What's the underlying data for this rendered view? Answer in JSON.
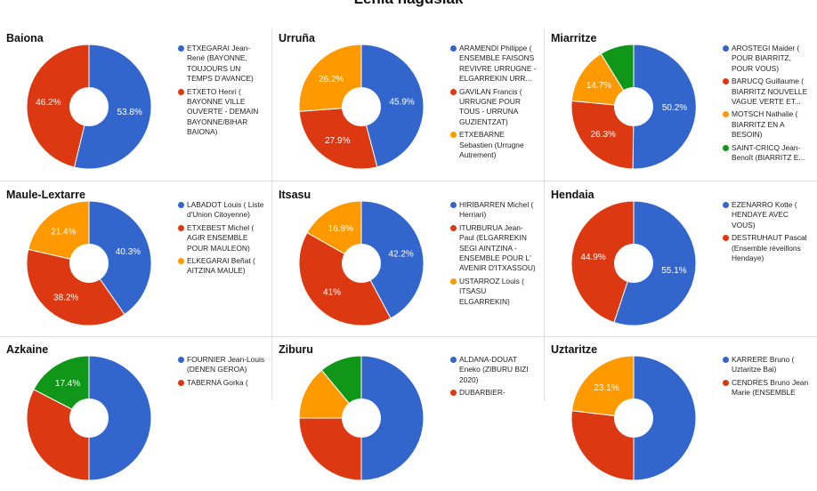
{
  "page": {
    "title": "Lehia nagusiak"
  },
  "chart_data": [
    {
      "type": "pie",
      "title": "Baiona",
      "slices": [
        {
          "name": "ETXEGARAI Jean-René (BAYONNE, TOUJOURS UN TEMPS D'AVANCE)",
          "value": 53.8,
          "label": "53.8%",
          "color": "#3366cc"
        },
        {
          "name": "ETXETO Henri ( BAYONNE VILLE OUVERTE - DEMAIN BAYONNE/BIHAR BAIONA)",
          "value": 46.2,
          "label": "46.2%",
          "color": "#dc3912"
        }
      ]
    },
    {
      "type": "pie",
      "title": "Urruña",
      "slices": [
        {
          "name": "ARAMENDI Philippe ( ENSEMBLE FAISONS REVIVRE URRUGNE - ELGARREKIN URR...",
          "value": 45.9,
          "label": "45.9%",
          "color": "#3366cc"
        },
        {
          "name": "GAVILAN Francis ( URRUGNE POUR TOUS - URRUNA GUZIENTZAT)",
          "value": 27.9,
          "label": "27.9%",
          "color": "#dc3912"
        },
        {
          "name": "ETXEBARNE Sebastien (Urrugne Autrement)",
          "value": 26.2,
          "label": "26.2%",
          "color": "#ff9900"
        }
      ]
    },
    {
      "type": "pie",
      "title": "Miarritze",
      "slices": [
        {
          "name": "AROSTEGI Maider ( POUR BIARRITZ, POUR VOUS)",
          "value": 50.2,
          "label": "50.2%",
          "color": "#3366cc"
        },
        {
          "name": "BARUCQ Guillaume ( BIARRITZ NOUVELLE VAGUE VERTE ET...",
          "value": 26.3,
          "label": "26.3%",
          "color": "#dc3912"
        },
        {
          "name": "MOTSCH Nathalie ( BIARRITZ EN A BESOIN)",
          "value": 14.7,
          "label": "14.7%",
          "color": "#ff9900"
        },
        {
          "name": "SAINT-CRICQ Jean-Benoît (BIARRITZ E...",
          "value": 8.8,
          "label": "",
          "color": "#109618"
        }
      ]
    },
    {
      "type": "pie",
      "title": "Maule-Lextarre",
      "slices": [
        {
          "name": "LABADOT Louis ( Liste d'Union Citoyenne)",
          "value": 40.3,
          "label": "40.3%",
          "color": "#3366cc"
        },
        {
          "name": "ETXEBEST Michel ( AGIR ENSEMBLE POUR MAULEON)",
          "value": 38.2,
          "label": "38.2%",
          "color": "#dc3912"
        },
        {
          "name": "ELKEGARAI Beñat ( AITZINA MAULE)",
          "value": 21.4,
          "label": "21.4%",
          "color": "#ff9900"
        }
      ]
    },
    {
      "type": "pie",
      "title": "Itsasu",
      "slices": [
        {
          "name": "HIRIBARREN Michel ( Herriari)",
          "value": 42.2,
          "label": "42.2%",
          "color": "#3366cc"
        },
        {
          "name": "ITURBURUA Jean-Paul (ELGARREKIN SEGI AINTZINA - ENSEMBLE POUR L' AVENIR D'ITXASSOU)",
          "value": 41,
          "label": "41%",
          "color": "#dc3912"
        },
        {
          "name": "USTARROZ Louis ( ITSASU ELGARREKIN)",
          "value": 16.8,
          "label": "16.8%",
          "color": "#ff9900"
        }
      ]
    },
    {
      "type": "pie",
      "title": "Hendaia",
      "slices": [
        {
          "name": "EZENARRO Kotte ( HENDAYE AVEC VOUS)",
          "value": 55.1,
          "label": "55.1%",
          "color": "#3366cc"
        },
        {
          "name": "DESTRUHAUT Pascal (Ensemble réveillons Hendaye)",
          "value": 44.9,
          "label": "44.9%",
          "color": "#dc3912"
        }
      ]
    },
    {
      "type": "pie",
      "title": "Azkaine",
      "slices": [
        {
          "name": "FOURNIER Jean-Louis (DENEN GEROA)",
          "value": 50,
          "label": "",
          "color": "#3366cc"
        },
        {
          "name": "TABERNA Gorka (",
          "value": 32.6,
          "label": "",
          "color": "#dc3912"
        },
        {
          "name": "",
          "value": 17.4,
          "label": "17.4%",
          "color": "#109618"
        }
      ]
    },
    {
      "type": "pie",
      "title": "Ziburu",
      "slices": [
        {
          "name": "ALDANA-DOUAT Eneko (ZIBURU BIZI 2020)",
          "value": 50,
          "label": "",
          "color": "#3366cc"
        },
        {
          "name": "DUBARBIER-",
          "value": 25,
          "label": "",
          "color": "#dc3912"
        },
        {
          "name": "",
          "value": 14,
          "label": "",
          "color": "#ff9900"
        },
        {
          "name": "",
          "value": 11,
          "label": "",
          "color": "#109618"
        }
      ]
    },
    {
      "type": "pie",
      "title": "Uztaritze",
      "slices": [
        {
          "name": "KARRERE Bruno ( Uztaritze Bai)",
          "value": 50,
          "label": "",
          "color": "#3366cc"
        },
        {
          "name": "CENDRES Bruno Jean Marie (ENSEMBLE",
          "value": 26.9,
          "label": "",
          "color": "#dc3912"
        },
        {
          "name": "",
          "value": 23.1,
          "label": "23.1%",
          "color": "#ff9900"
        }
      ]
    }
  ]
}
